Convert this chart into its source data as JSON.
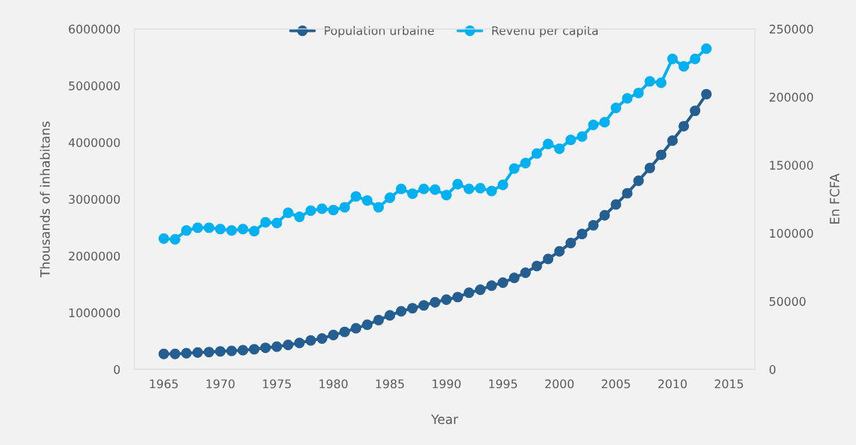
{
  "chart_data": {
    "type": "line",
    "xlabel": "Year",
    "ylabel": "Thousands of inhabitans",
    "y2label": "En FCFA",
    "x": [
      1965,
      1966,
      1967,
      1968,
      1969,
      1970,
      1971,
      1972,
      1973,
      1974,
      1975,
      1976,
      1977,
      1978,
      1979,
      1980,
      1981,
      1982,
      1983,
      1984,
      1985,
      1986,
      1987,
      1988,
      1989,
      1990,
      1991,
      1992,
      1993,
      1994,
      1995,
      1996,
      1997,
      1998,
      1999,
      2000,
      2001,
      2002,
      2003,
      2004,
      2005,
      2006,
      2007,
      2008,
      2009,
      2010,
      2011,
      2012,
      2013
    ],
    "series": [
      {
        "name": "Population urbaine",
        "color": "#255e91",
        "values": [
          272000,
          272000,
          284000,
          297000,
          305000,
          317000,
          326000,
          338000,
          355000,
          380000,
          400000,
          430000,
          465000,
          510000,
          543000,
          606000,
          660000,
          723000,
          786000,
          869000,
          952000,
          1024000,
          1078000,
          1128000,
          1182000,
          1228000,
          1274000,
          1350000,
          1404000,
          1475000,
          1529000,
          1612000,
          1704000,
          1821000,
          1946000,
          2080000,
          2226000,
          2385000,
          2540000,
          2715000,
          2907000,
          3104000,
          3325000,
          3550000,
          3781000,
          4031000,
          4286000,
          4557000,
          4850000
        ]
      },
      {
        "name": "Revenu per capita",
        "color": "#00b0f0",
        "axis": "y2",
        "values": [
          96000,
          95500,
          102000,
          104000,
          104000,
          103000,
          102000,
          103000,
          101500,
          108000,
          107500,
          115000,
          112000,
          116500,
          118000,
          117000,
          119000,
          127000,
          124000,
          119000,
          126000,
          132500,
          129000,
          132500,
          132000,
          128000,
          136000,
          132500,
          133000,
          131000,
          135500,
          147500,
          151500,
          158500,
          165500,
          162000,
          168500,
          171000,
          179500,
          181500,
          192000,
          199000,
          203000,
          211500,
          210500,
          228000,
          222500,
          228000,
          235500
        ]
      }
    ],
    "xlim": [
      1962.4,
      2017.3
    ],
    "xticks": [
      1965,
      1970,
      1975,
      1980,
      1985,
      1990,
      1995,
      2000,
      2005,
      2010,
      2015
    ],
    "ylim": [
      0,
      6000000
    ],
    "yticks": [
      0,
      1000000,
      2000000,
      3000000,
      4000000,
      5000000,
      6000000
    ],
    "y2lim": [
      0,
      250000
    ],
    "y2ticks": [
      0,
      50000,
      100000,
      150000,
      200000,
      250000
    ],
    "marker": "circle",
    "line_style": "solid",
    "legend": "top",
    "grid": false
  }
}
